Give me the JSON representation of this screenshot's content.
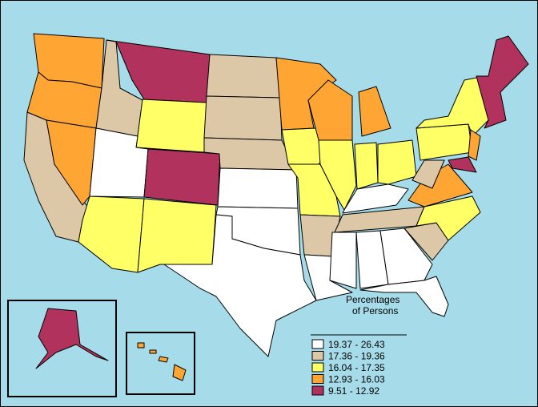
{
  "legend": {
    "title_lines": [
      "Percentages",
      "of Persons"
    ],
    "items": [
      {
        "label": "19.37 - 26.43",
        "color": "#ffffff"
      },
      {
        "label": "17.36 - 19.36",
        "color": "#dcc8a6"
      },
      {
        "label": "16.04 - 17.35",
        "color": "#ffff66"
      },
      {
        "label": "12.93 - 16.03",
        "color": "#ffa533"
      },
      {
        "label": "9.51 - 12.92",
        "color": "#b1325c"
      }
    ]
  }
}
